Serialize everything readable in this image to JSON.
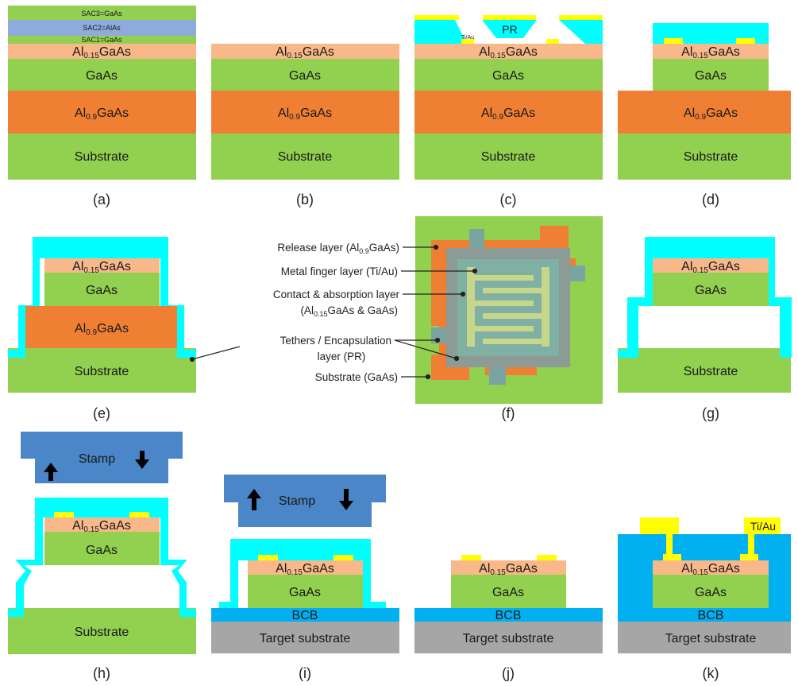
{
  "colors": {
    "gaas": "#92d050",
    "al15": "#f8b889",
    "al9": "#ee7f33",
    "pr": "#00ffff",
    "metal": "#ffff00",
    "alas": "#8faadc",
    "bcb": "#00b0f0",
    "target": "#a6a6a6",
    "stamp": "#4a86c8"
  },
  "labels": {
    "al15_prefix": "Al",
    "al15_sub": "0.15",
    "al15_suffix": "GaAs",
    "al9_prefix": "Al",
    "al9_sub": "0.9",
    "al9_suffix": "GaAs",
    "gaas": "GaAs",
    "substrate": "Substrate",
    "sac3": "SAC3=GaAs",
    "sac2": "SAC2=AlAs",
    "sac1": "SAC1=GaAs",
    "pr": "PR",
    "tiau": "Ti/Au",
    "stamp": "Stamp",
    "bcb": "BCB",
    "target_substrate": "Target substrate",
    "tiau_k": "Ti/Au"
  },
  "captions": [
    "(a)",
    "(b)",
    "(c)",
    "(d)",
    "(e)",
    "(f)",
    "(g)",
    "(h)",
    "(i)",
    "(j)",
    "(k)"
  ],
  "legend_f": {
    "release_pre": "Release layer (Al",
    "release_sub": "0.9",
    "release_post": "GaAs)",
    "metal_finger": "Metal finger layer (Ti/Au)",
    "contact_line1": "Contact & absorption layer",
    "contact_line2_pre": "(Al",
    "contact_line2_sub": "0.15",
    "contact_line2_post": "GaAs & GaAs)",
    "tethers_line1": "Tethers / Encapsulation",
    "tethers_line2": "layer (PR)",
    "substrate": "Substrate (GaAs)"
  }
}
